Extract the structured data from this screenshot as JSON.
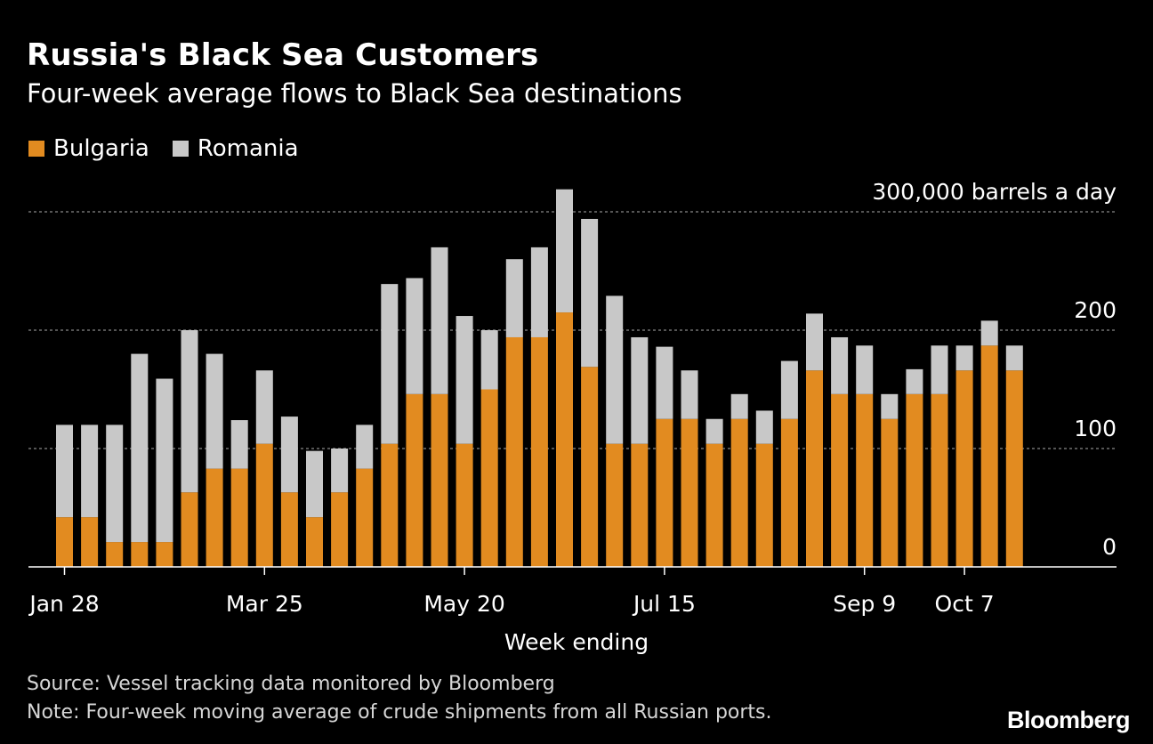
{
  "title": "Russia's Black Sea Customers",
  "subtitle": "Four-week average flows to Black Sea destinations",
  "source": "Source: Vessel tracking data monitored by Bloomberg",
  "note": "Note: Four-week moving average of crude shipments from all Russian ports.",
  "brand": "Bloomberg",
  "colors": {
    "bulgaria": "#e28b20",
    "romania": "#c8c8c8",
    "background": "#000000",
    "grid": "#888888"
  },
  "chart_data": {
    "type": "bar",
    "stacked": true,
    "xlabel": "Week ending",
    "ylabel": "300,000 barrels a day",
    "ylim": [
      0,
      300
    ],
    "yticks": [
      {
        "value": 0,
        "label": "0"
      },
      {
        "value": 100,
        "label": "100"
      },
      {
        "value": 200,
        "label": "200"
      },
      {
        "value": 300,
        "label": "300,000 barrels a day"
      }
    ],
    "xtick_labels": [
      {
        "index": 0,
        "label": "Jan 28"
      },
      {
        "index": 8,
        "label": "Mar 25"
      },
      {
        "index": 16,
        "label": "May 20"
      },
      {
        "index": 24,
        "label": "Jul 15"
      },
      {
        "index": 32,
        "label": "Sep 9"
      },
      {
        "index": 36,
        "label": "Oct 7"
      }
    ],
    "grid": true,
    "legend_position": "top-left",
    "series": [
      {
        "name": "Bulgaria",
        "values": [
          42,
          42,
          21,
          21,
          21,
          63,
          83,
          83,
          104,
          63,
          42,
          63,
          83,
          104,
          146,
          146,
          104,
          150,
          194,
          194,
          215,
          169,
          104,
          104,
          125,
          125,
          104,
          125,
          104,
          125,
          166,
          146,
          146,
          125,
          146,
          146,
          166,
          187,
          166
        ]
      },
      {
        "name": "Romania",
        "values": [
          78,
          78,
          99,
          159,
          138,
          137,
          97,
          41,
          62,
          64,
          56,
          37,
          37,
          135,
          98,
          124,
          108,
          50,
          66,
          76,
          104,
          125,
          125,
          90,
          61,
          41,
          21,
          21,
          28,
          49,
          48,
          48,
          41,
          21,
          21,
          41,
          21,
          21,
          21
        ]
      }
    ]
  }
}
